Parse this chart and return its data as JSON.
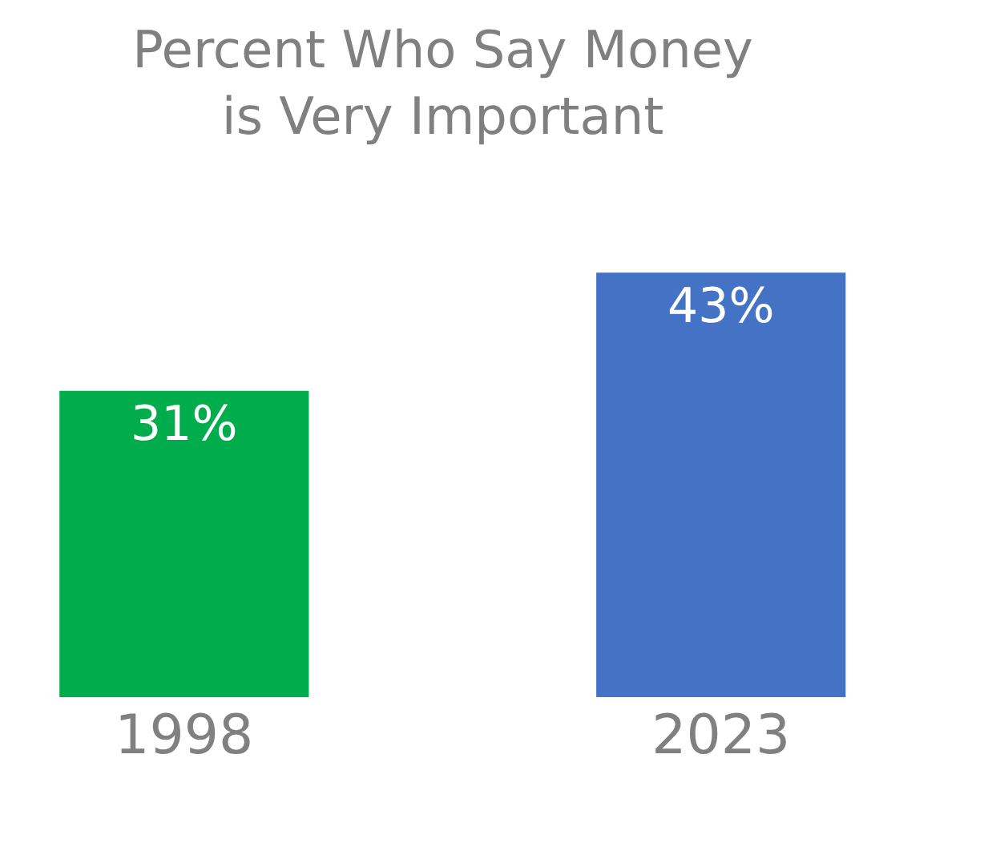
{
  "chart_data": {
    "type": "bar",
    "title": "Percent Who Say Money is Very Important",
    "categories": [
      "1998",
      "2023"
    ],
    "values": [
      31,
      43
    ],
    "value_labels": [
      "31%",
      "43%"
    ],
    "colors": [
      "#00ac4c",
      "#4472c4"
    ],
    "legend": false
  }
}
